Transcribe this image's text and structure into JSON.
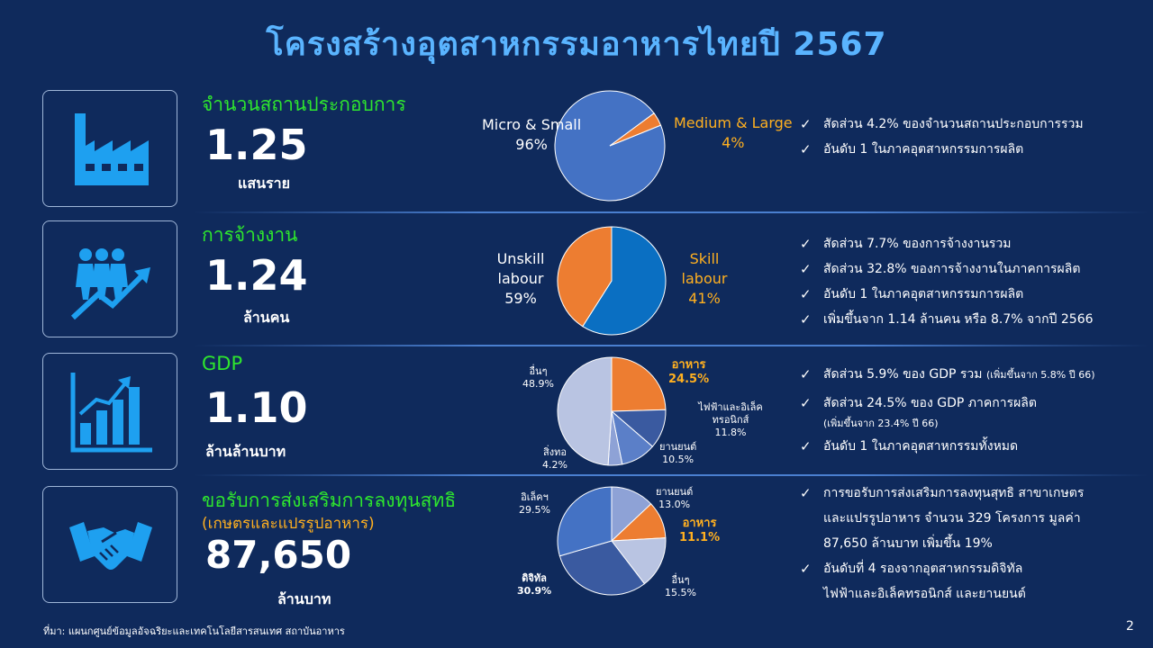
{
  "title": "โครงสร้างอุตสาหกรรมอาหารไทยปี 2567",
  "rows": [
    {
      "icon": "factory-icon",
      "label": "จำนวนสถานประกอบการ",
      "value": "1.25",
      "unit": "แสนราย",
      "bullets": [
        "สัดส่วน 4.2% ของจำนวนสถานประกอบการรวม",
        "อันดับ 1 ในภาคอุตสาหกรรมการผลิต"
      ]
    },
    {
      "icon": "employment-growth-icon",
      "label": "การจ้างงาน",
      "value": "1.24",
      "unit": "ล้านคน",
      "bullets": [
        "สัดส่วน 7.7% ของการจ้างงานรวม",
        "สัดส่วน 32.8% ของการจ้างงานในภาคการผลิต",
        "อันดับ 1 ในภาคอุตสาหกรรมการผลิต",
        "เพิ่มขึ้นจาก 1.14 ล้านคน หรือ 8.7% จากปี 2566"
      ]
    },
    {
      "icon": "bar-growth-icon",
      "label": "GDP",
      "value": "1.10",
      "unit": "ล้านล้านบาท",
      "bullets": [
        "สัดส่วน 5.9% ของ GDP รวม",
        "(เพิ่มขึ้นจาก 5.8% ปี 66)",
        "สัดส่วน 24.5% ของ GDP ภาคการผลิต",
        "(เพิ่มขึ้นจาก 23.4% ปี 66)",
        "อันดับ 1 ในภาคอุตสาหกรรมทั้งหมด"
      ]
    },
    {
      "icon": "handshake-icon",
      "label": "ขอรับการส่งเสริมการลงทุนสุทธิ",
      "label2": "(เกษตรและแปรรูปอาหาร)",
      "value": "87,650",
      "unit": "ล้านบาท",
      "bullets": [
        "การขอรับการส่งเสริมการลงทุนสุทธิ สาขาเกษตร",
        "และแปรรูปอาหาร จำนวน 329 โครงการ มูลค่า",
        "87,650 ล้านบาท เพิ่มขึ้น 19%",
        "อันดับที่ 4 รองจากอุตสาหกรรมดิจิทัล",
        "ไฟฟ้าและอิเล็คทรอนิกส์ และยานยนต์"
      ]
    }
  ],
  "chart_data": [
    {
      "type": "pie",
      "slices": [
        {
          "label": "Micro & Small",
          "value": 96,
          "text": "96%",
          "color": "#4472c4"
        },
        {
          "label": "Medium & Large",
          "value": 4,
          "text": "4%",
          "color": "#ed7d31"
        }
      ]
    },
    {
      "type": "pie",
      "slices": [
        {
          "label": "Unskill labour",
          "value": 59,
          "text": "59%",
          "color": "#0a6fc2"
        },
        {
          "label": "Skill labour",
          "value": 41,
          "text": "41%",
          "color": "#ed7d31"
        }
      ]
    },
    {
      "type": "pie",
      "slices": [
        {
          "label": "อาหาร",
          "value": 24.5,
          "text": "24.5%",
          "color": "#ed7d31"
        },
        {
          "label": "ไฟฟ้าและอิเล็คทรอนิกส์",
          "value": 11.8,
          "text": "11.8%",
          "color": "#3a5aa0"
        },
        {
          "label": "ยานยนต์",
          "value": 10.5,
          "text": "10.5%",
          "color": "#5b7fc8"
        },
        {
          "label": "สิ่งทอ",
          "value": 4.2,
          "text": "4.2%",
          "color": "#8ea2d6"
        },
        {
          "label": "อื่นๆ",
          "value": 48.9,
          "text": "48.9%",
          "color": "#b9c4e2"
        }
      ]
    },
    {
      "type": "pie",
      "slices": [
        {
          "label": "ยานยนต์",
          "value": 13.0,
          "text": "13.0%",
          "color": "#8ea2d6"
        },
        {
          "label": "อาหาร",
          "value": 11.1,
          "text": "11.1%",
          "color": "#ed7d31"
        },
        {
          "label": "อื่นๆ",
          "value": 15.5,
          "text": "15.5%",
          "color": "#b9c4e2"
        },
        {
          "label": "ดิจิทัล",
          "value": 30.9,
          "text": "30.9%",
          "color": "#3a5aa0"
        },
        {
          "label": "อิเล็คฯ",
          "value": 29.5,
          "text": "29.5%",
          "color": "#4472c4"
        }
      ]
    }
  ],
  "check_mark": "✓",
  "source": "ที่มา: แผนกศูนย์ข้อมูลอัจฉริยะและเทคโนโลยีสารสนเทศ สถาบันอาหาร",
  "page_number": "2"
}
